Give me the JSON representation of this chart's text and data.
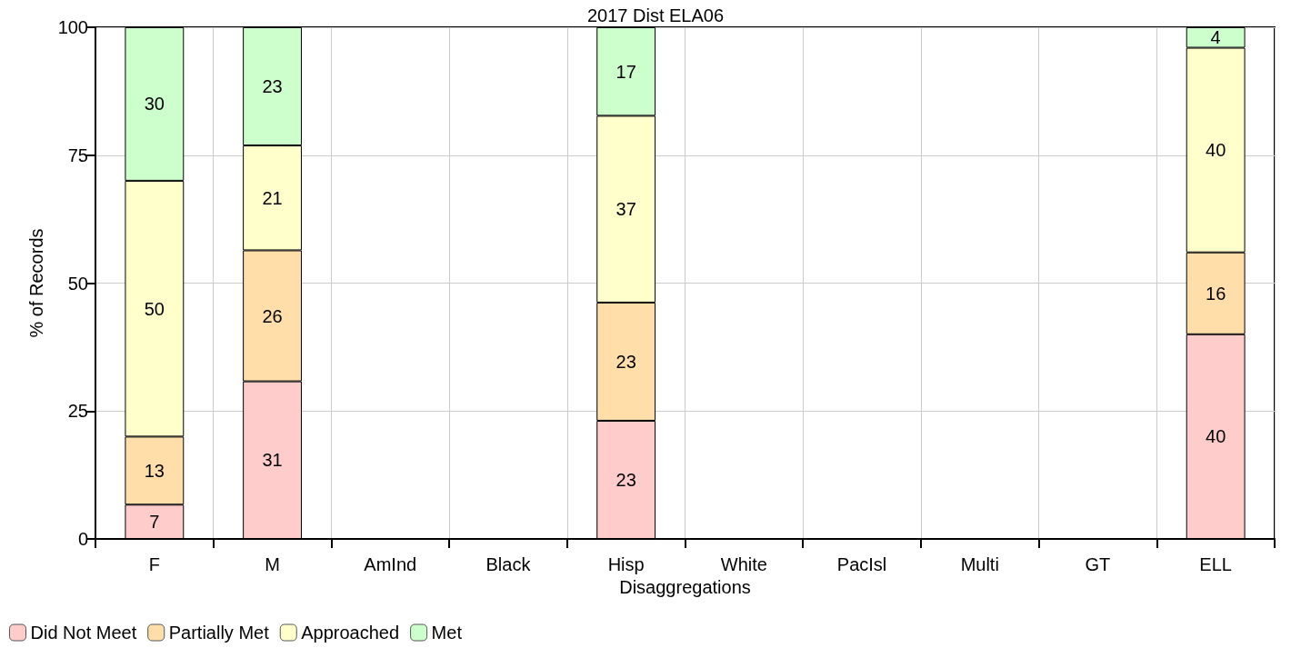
{
  "chart_data": {
    "type": "bar",
    "title": "2017 Dist ELA06",
    "xlabel": "Disaggregations",
    "ylabel": "% of Records",
    "categories": [
      "F",
      "M",
      "AmInd",
      "Black",
      "Hisp",
      "White",
      "PacIsl",
      "Multi",
      "GT",
      "ELL"
    ],
    "stacked": true,
    "series": [
      {
        "name": "Did Not Meet",
        "color": "#ffcccc",
        "values": [
          6.7,
          30.8,
          null,
          null,
          23.1,
          null,
          null,
          null,
          null,
          40
        ],
        "value_labels": [
          "7",
          "31",
          null,
          null,
          "23",
          null,
          null,
          null,
          null,
          "40"
        ]
      },
      {
        "name": "Partially Met",
        "color": "#ffdeaa",
        "values": [
          13.3,
          25.6,
          null,
          null,
          23.1,
          null,
          null,
          null,
          null,
          16
        ],
        "value_labels": [
          "13",
          "26",
          null,
          null,
          "23",
          null,
          null,
          null,
          null,
          "16"
        ]
      },
      {
        "name": "Approached",
        "color": "#ffffcc",
        "values": [
          50,
          20.5,
          null,
          null,
          36.5,
          null,
          null,
          null,
          null,
          40
        ],
        "value_labels": [
          "50",
          "21",
          null,
          null,
          "37",
          null,
          null,
          null,
          null,
          "40"
        ]
      },
      {
        "name": "Met",
        "color": "#ccffcc",
        "values": [
          30,
          23.1,
          null,
          null,
          17.3,
          null,
          null,
          null,
          null,
          4
        ],
        "value_labels": [
          "30",
          "23",
          null,
          null,
          "17",
          null,
          null,
          null,
          null,
          "4"
        ]
      }
    ],
    "ylim": [
      0,
      100
    ],
    "yticks": [
      0,
      25,
      50,
      75,
      100
    ],
    "grid": true,
    "legend": "bottom left"
  }
}
